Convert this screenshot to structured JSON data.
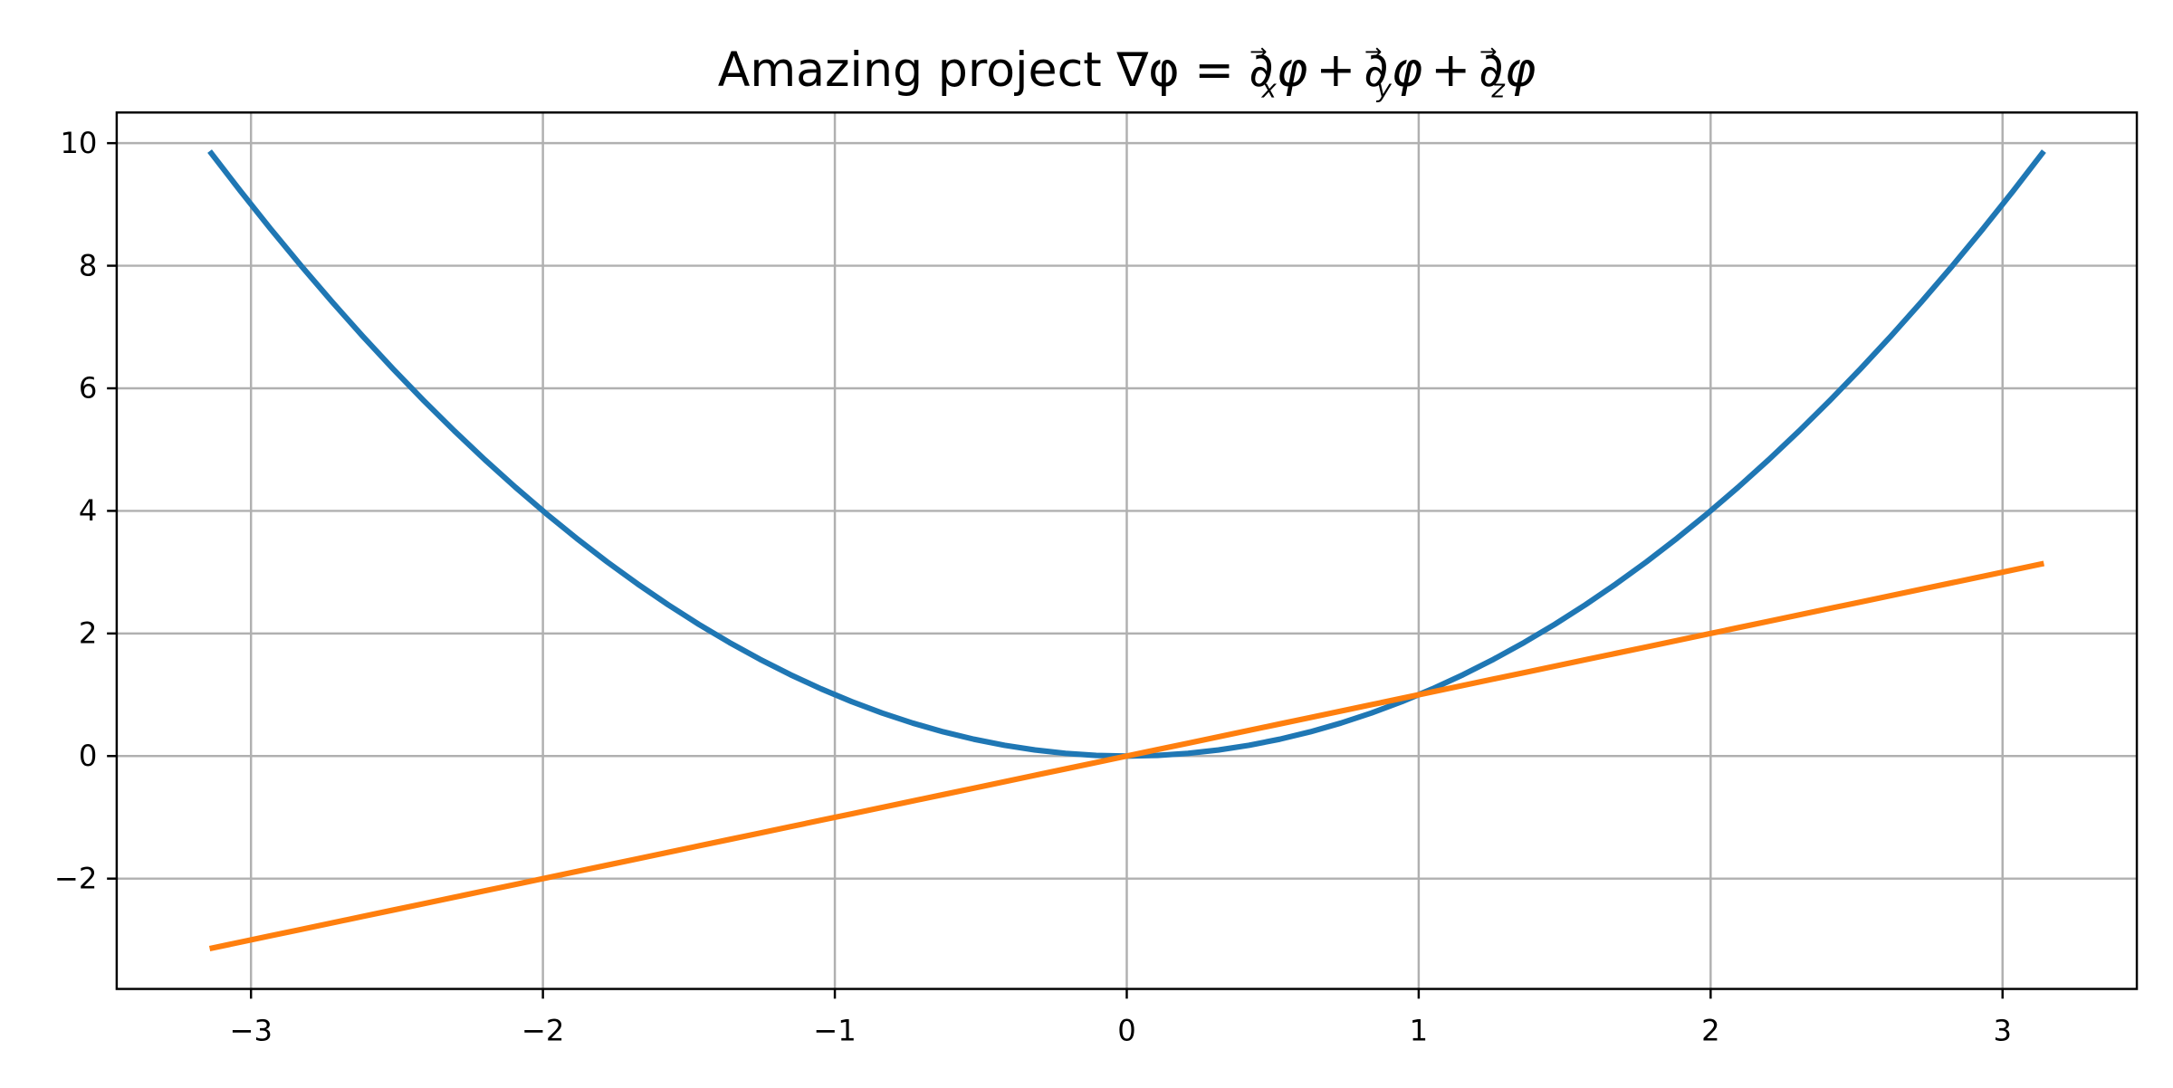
{
  "chart_data": {
    "type": "line",
    "title": "Amazing project ∇φ = ∂⃗ₓφ + ∂⃗ᵧφ + ∂⃗_zφ",
    "title_parts": {
      "prefix": "Amazing project ∇φ = ",
      "d": "∂",
      "arrow": "→",
      "phi": "φ",
      "plus": "+",
      "sub_x": "x",
      "sub_y": "y",
      "sub_z": "z"
    },
    "xlabel": "",
    "ylabel": "",
    "xlim": [
      -3.46,
      3.46
    ],
    "ylim": [
      -3.8,
      10.5
    ],
    "xticks": [
      -3,
      -2,
      -1,
      0,
      1,
      2,
      3
    ],
    "xtick_labels": [
      "−3",
      "−2",
      "−1",
      "0",
      "1",
      "2",
      "3"
    ],
    "yticks": [
      -2,
      0,
      2,
      4,
      6,
      8,
      10
    ],
    "ytick_labels": [
      "−2",
      "0",
      "2",
      "4",
      "6",
      "8",
      "10"
    ],
    "grid": true,
    "legend": "none",
    "x_domain": [
      -3.14159,
      3.14159
    ],
    "series": [
      {
        "function": "x^2",
        "color": "#1f77b4"
      },
      {
        "function": "x",
        "color": "#ff7f0e"
      }
    ]
  }
}
